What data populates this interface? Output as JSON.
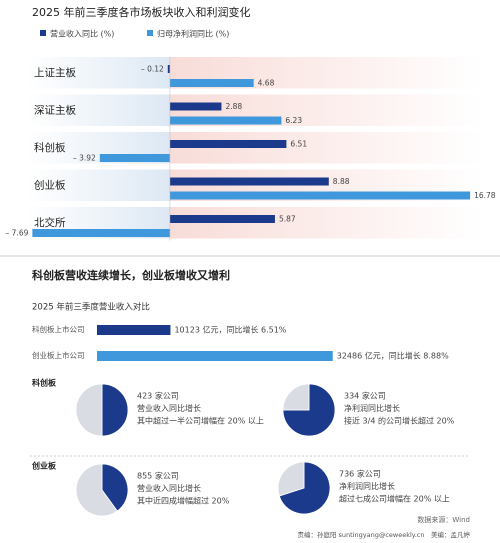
{
  "chart_data": [
    {
      "type": "bar",
      "orientation": "horizontal",
      "title": "2025 年前三季度各市场板块收入和利润变化",
      "categories": [
        "上证主板",
        "深证主板",
        "科创板",
        "创业板",
        "北交所"
      ],
      "series": [
        {
          "name": "营业收入同比 (%)",
          "color": "#1b3a8c",
          "values": [
            -0.12,
            2.88,
            6.51,
            8.88,
            5.87
          ],
          "value_labels": [
            "– 0.12",
            "2.88",
            "6.51",
            "8.88",
            "5.87"
          ]
        },
        {
          "name": "归母净利润同比 (%)",
          "color": "#3f97dc",
          "values": [
            4.68,
            6.23,
            -3.92,
            16.78,
            -7.69
          ],
          "value_labels": [
            "4.68",
            "6.23",
            "– 3.92",
            "16.78",
            "– 7.69"
          ]
        }
      ],
      "xlim": [
        -9.5,
        17.5
      ]
    },
    {
      "type": "bar",
      "orientation": "horizontal",
      "title": "2025 年前三季度营业收入对比",
      "categories": [
        "科创板上市公司",
        "创业板上市公司"
      ],
      "values": [
        10123,
        32486
      ],
      "value_labels": [
        "10123 亿元，同比增长 6.51%",
        "32486 亿元，同比增长 8.88%"
      ],
      "colors": [
        "#1b3a8c",
        "#3f97dc"
      ],
      "xlim": [
        0,
        35000
      ]
    },
    {
      "type": "pie",
      "group": "科创板",
      "values": [
        50,
        50
      ],
      "colors": [
        "#1b3a8c",
        "#d9dde3"
      ],
      "caption": [
        "423 家公司",
        "营业收入同比增长",
        "其中超过一半公司增幅在 20% 以上"
      ]
    },
    {
      "type": "pie",
      "values": [
        75,
        25
      ],
      "colors": [
        "#1b3a8c",
        "#d9dde3"
      ],
      "caption": [
        "334 家公司",
        "净利润同比增长",
        "接近 3/4 的公司增长超过 20%"
      ]
    },
    {
      "type": "pie",
      "group": "创业板",
      "values": [
        40,
        60
      ],
      "colors": [
        "#1b3a8c",
        "#d9dde3"
      ],
      "caption": [
        "855 家公司",
        "营业收入同比增长",
        "其中近四成增幅超过 20%"
      ]
    },
    {
      "type": "pie",
      "values": [
        70,
        30
      ],
      "colors": [
        "#1b3a8c",
        "#d9dde3"
      ],
      "caption": [
        "736 家公司",
        "净利润同比增长",
        "超过七成公司增幅在 20% 以上"
      ]
    }
  ],
  "section_title": "科创板营收连续增长，创业板增收又增利",
  "source": "数据来源：Wind",
  "credits": "责编：孙庭阳 suntingyang@ceweekly.cn　美编：孟凡婷"
}
